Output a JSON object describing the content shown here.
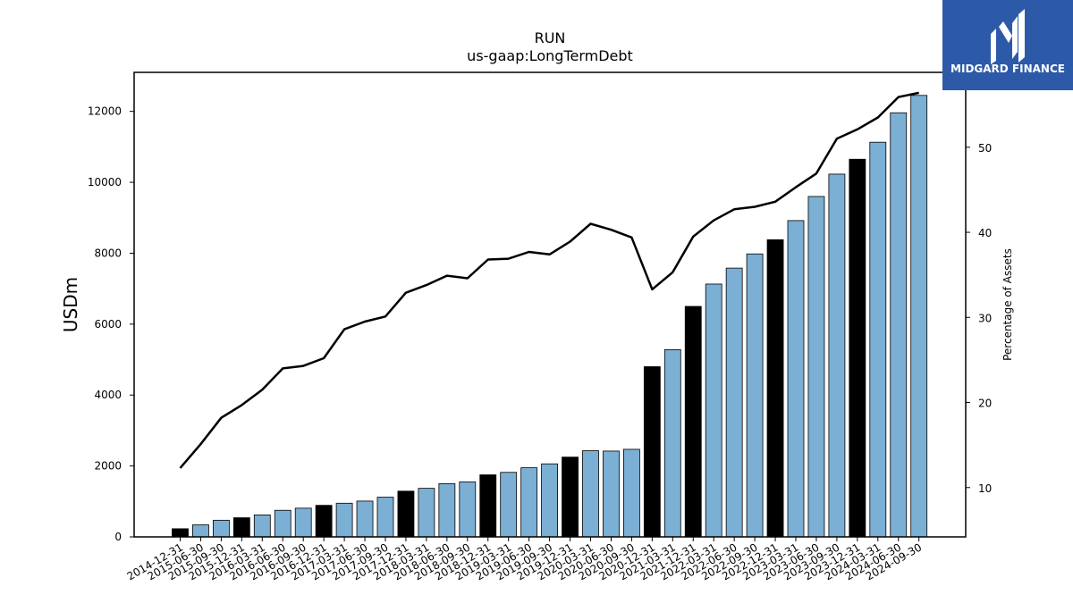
{
  "brand": {
    "name": "MIDGARD FINANCE",
    "color": "#2d5aa8",
    "icon": "midgard-logo-icon"
  },
  "chart_data": {
    "type": "bar",
    "title": "RUN",
    "subtitle": "us-gaap:LongTermDebt",
    "ylabel": "USDm",
    "y2label": "Percentage of Assets",
    "ylim": [
      0,
      13100
    ],
    "y2lim": [
      4.2,
      58.8
    ],
    "yticks": [
      0,
      2000,
      4000,
      6000,
      8000,
      10000,
      12000
    ],
    "y2ticks": [
      10,
      20,
      30,
      40,
      50
    ],
    "grid": false,
    "bar_colors": {
      "fiscal_year_end": "#000000",
      "quarter": "#7bafd4"
    },
    "line_color": "#000000",
    "categories": [
      "2014-12-31",
      "2015-06-30",
      "2015-09-30",
      "2015-12-31",
      "2016-03-31",
      "2016-06-30",
      "2016-09-30",
      "2016-12-31",
      "2017-03-31",
      "2017-06-30",
      "2017-09-30",
      "2017-12-31",
      "2018-03-31",
      "2018-06-30",
      "2018-09-30",
      "2018-12-31",
      "2019-03-31",
      "2019-06-30",
      "2019-09-30",
      "2019-12-31",
      "2020-03-31",
      "2020-06-30",
      "2020-09-30",
      "2020-12-31",
      "2021-03-31",
      "2021-12-31",
      "2022-03-31",
      "2022-06-30",
      "2022-09-30",
      "2022-12-31",
      "2023-03-31",
      "2023-06-30",
      "2023-09-30",
      "2023-12-31",
      "2024-03-31",
      "2024-06-30",
      "2024-09-30"
    ],
    "series": [
      {
        "type": "bar",
        "axis": "left",
        "values": [
          230,
          340,
          470,
          540,
          620,
          750,
          810,
          890,
          950,
          1010,
          1120,
          1290,
          1370,
          1500,
          1550,
          1750,
          1820,
          1950,
          2060,
          2250,
          2430,
          2420,
          2470,
          4800,
          5280,
          6500,
          7130,
          7580,
          7980,
          8380,
          8920,
          9600,
          10230,
          10650,
          11130,
          11960,
          12450
        ],
        "fiscal_year_end": [
          true,
          false,
          false,
          true,
          false,
          false,
          false,
          true,
          false,
          false,
          false,
          true,
          false,
          false,
          false,
          true,
          false,
          false,
          false,
          true,
          false,
          false,
          false,
          true,
          false,
          true,
          false,
          false,
          false,
          true,
          false,
          false,
          false,
          true,
          false,
          false,
          false
        ]
      },
      {
        "type": "line",
        "axis": "right",
        "values": [
          12.3,
          15.1,
          18.2,
          19.7,
          21.5,
          24.0,
          24.3,
          25.2,
          28.6,
          29.5,
          30.1,
          32.9,
          33.8,
          34.9,
          34.6,
          36.8,
          36.9,
          37.7,
          37.4,
          38.9,
          41.0,
          40.3,
          39.4,
          33.3,
          35.3,
          39.5,
          41.4,
          42.7,
          43.0,
          43.6,
          45.3,
          46.9,
          51.0,
          52.1,
          53.5,
          55.9,
          56.4
        ]
      }
    ]
  }
}
